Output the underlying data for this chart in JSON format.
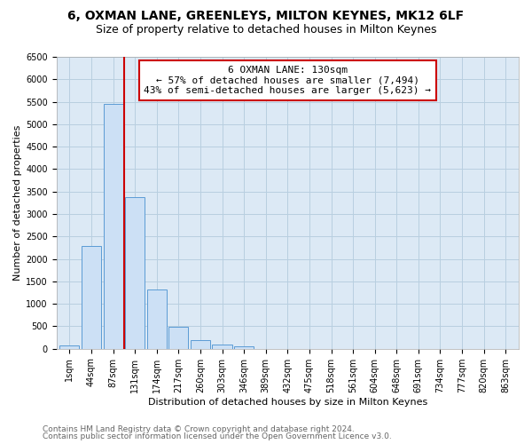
{
  "title": "6, OXMAN LANE, GREENLEYS, MILTON KEYNES, MK12 6LF",
  "subtitle": "Size of property relative to detached houses in Milton Keynes",
  "xlabel": "Distribution of detached houses by size in Milton Keynes",
  "ylabel": "Number of detached properties",
  "bar_labels": [
    "1sqm",
    "44sqm",
    "87sqm",
    "131sqm",
    "174sqm",
    "217sqm",
    "260sqm",
    "303sqm",
    "346sqm",
    "389sqm",
    "432sqm",
    "475sqm",
    "518sqm",
    "561sqm",
    "604sqm",
    "648sqm",
    "691sqm",
    "734sqm",
    "777sqm",
    "820sqm",
    "863sqm"
  ],
  "bar_values": [
    75,
    2280,
    5450,
    3380,
    1310,
    480,
    185,
    95,
    50,
    0,
    0,
    0,
    0,
    0,
    0,
    0,
    0,
    0,
    0,
    0,
    0
  ],
  "bar_color": "#cce0f5",
  "bar_edge_color": "#5b9bd5",
  "red_line_x": 2.5,
  "red_line_color": "#cc0000",
  "ylim_max": 6500,
  "yticks": [
    0,
    500,
    1000,
    1500,
    2000,
    2500,
    3000,
    3500,
    4000,
    4500,
    5000,
    5500,
    6000,
    6500
  ],
  "annotation_title": "6 OXMAN LANE: 130sqm",
  "annotation_line1": "← 57% of detached houses are smaller (7,494)",
  "annotation_line2": "43% of semi-detached houses are larger (5,623) →",
  "annotation_box_facecolor": "#ffffff",
  "annotation_box_edgecolor": "#cc0000",
  "plot_bg_color": "#dce9f5",
  "fig_bg_color": "#ffffff",
  "grid_color": "#b8cfe0",
  "title_fontsize": 10,
  "subtitle_fontsize": 9,
  "axis_label_fontsize": 8,
  "tick_fontsize": 7,
  "annotation_fontsize": 8,
  "footnote1": "Contains HM Land Registry data © Crown copyright and database right 2024.",
  "footnote2": "Contains public sector information licensed under the Open Government Licence v3.0.",
  "footnote_fontsize": 6.5,
  "footnote_color": "#666666"
}
